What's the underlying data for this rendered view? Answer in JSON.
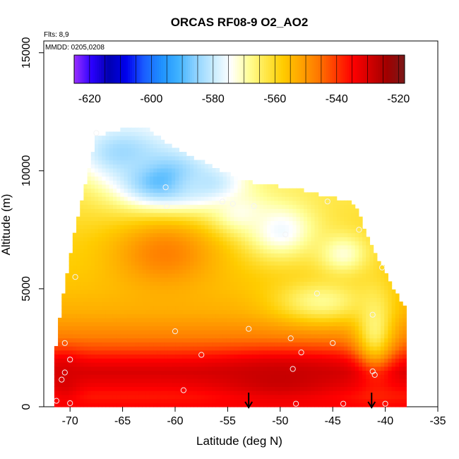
{
  "chart_data": {
    "type": "heatmap",
    "title": "ORCAS RF08-9 O2_AO2",
    "subtitle_flights": "Flts: 8,9",
    "subtitle_dates": "MMDD: 0205,0208",
    "xlabel": "Latitude (deg N)",
    "ylabel": "Altitude (m)",
    "xlim": [
      -72.5,
      -35
    ],
    "ylim": [
      0,
      15500
    ],
    "x_ticks": [
      -70,
      -65,
      -60,
      -55,
      -50,
      -45,
      -40,
      -35
    ],
    "x_tick_labels": [
      "-70",
      "-65",
      "-60",
      "-55",
      "-50",
      "-45",
      "-40",
      "-35"
    ],
    "y_ticks": [
      0,
      5000,
      10000,
      15000
    ],
    "y_tick_labels": [
      "0",
      "5000",
      "10000",
      "15000"
    ],
    "colorbar": {
      "range": [
        -625,
        -518
      ],
      "ticks": [
        -620,
        -600,
        -580,
        -560,
        -540,
        -520
      ],
      "tick_labels": [
        "-620",
        "-600",
        "-580",
        "-560",
        "-540",
        "-520"
      ],
      "colors": [
        "#9b30ff",
        "#2a00ff",
        "#0000b0",
        "#0000ee",
        "#1a5cff",
        "#1e90ff",
        "#3fb2ff",
        "#8fd3ff",
        "#c8ecff",
        "#ffffff",
        "#ffff9a",
        "#ffe84a",
        "#ffcc00",
        "#ffa500",
        "#ff7a00",
        "#ff3c00",
        "#ff0000",
        "#d20000",
        "#a00000",
        "#7a1a1a"
      ]
    },
    "field": {
      "x_range": [
        -71.5,
        -38
      ],
      "y_range": [
        0,
        12000
      ],
      "outline_latitudes": [
        -71.5,
        -71.2,
        -70.8,
        -70.3,
        -69.5,
        -68.5,
        -67.5,
        -66.0,
        -64.5,
        -63.0,
        -61.5,
        -60.0,
        -58.5,
        -57.0,
        -55.5,
        -54.0,
        -52.5,
        -51.0,
        -49.5,
        -48.0,
        -46.5,
        -45.0,
        -43.5,
        -42.5,
        -42.0,
        -41.5,
        -40.8,
        -40.0,
        -39.2,
        -38.6,
        -38.2
      ],
      "outline_top_altitudes": [
        2000,
        3000,
        4500,
        5600,
        7500,
        9500,
        11400,
        11700,
        11800,
        11900,
        11400,
        11000,
        10600,
        10300,
        10000,
        9700,
        9500,
        9400,
        9300,
        9200,
        9000,
        8900,
        8700,
        8300,
        7600,
        7000,
        6300,
        5800,
        5000,
        4600,
        4300
      ],
      "background_profile": {
        "altitudes": [
          0,
          500,
          1000,
          1500,
          2000,
          2500,
          3000,
          3500,
          4000,
          5000,
          6000,
          7000,
          8000,
          9000,
          10000,
          11000,
          12000
        ],
        "values": [
          -535,
          -537,
          -533,
          -530,
          -535,
          -542,
          -547,
          -550,
          -553,
          -556,
          -558,
          -559,
          -561,
          -563,
          -566,
          -570,
          -573
        ]
      },
      "anomalies": [
        {
          "lat": -61,
          "alt": 9600,
          "value": -593,
          "lat_width": 4.5,
          "alt_width": 1300
        },
        {
          "lat": -65,
          "alt": 10800,
          "value": -584,
          "lat_width": 4,
          "alt_width": 1100
        },
        {
          "lat": -57,
          "alt": 9400,
          "value": -582,
          "lat_width": 3.5,
          "alt_width": 900
        },
        {
          "lat": -50,
          "alt": 7500,
          "value": -576,
          "lat_width": 3.5,
          "alt_width": 1200
        },
        {
          "lat": -54,
          "alt": 8200,
          "value": -574,
          "lat_width": 3,
          "alt_width": 900
        },
        {
          "lat": -44,
          "alt": 6500,
          "value": -572,
          "lat_width": 2.5,
          "alt_width": 900
        },
        {
          "lat": -46,
          "alt": 4500,
          "value": -568,
          "lat_width": 4.5,
          "alt_width": 900
        },
        {
          "lat": -41,
          "alt": 3500,
          "value": -566,
          "lat_width": 1.8,
          "alt_width": 1800
        },
        {
          "lat": -61,
          "alt": 6500,
          "value": -547,
          "lat_width": 5,
          "alt_width": 1500
        },
        {
          "lat": -50,
          "alt": 1200,
          "value": -528,
          "lat_width": 6,
          "alt_width": 900
        },
        {
          "lat": -70.5,
          "alt": 1200,
          "value": -530,
          "lat_width": 1.5,
          "alt_width": 900
        }
      ]
    },
    "observation_points": [
      [
        -67.5,
        11600
      ],
      [
        -69.5,
        5500
      ],
      [
        -70.5,
        2700
      ],
      [
        -70.0,
        2000
      ],
      [
        -70.5,
        1450
      ],
      [
        -70.8,
        1150
      ],
      [
        -71.3,
        250
      ],
      [
        -70.0,
        150
      ],
      [
        -60.9,
        9300
      ],
      [
        -60.8,
        8500
      ],
      [
        -55.5,
        8700
      ],
      [
        -54.5,
        8600
      ],
      [
        -52.5,
        8500
      ],
      [
        -49.5,
        7300
      ],
      [
        -46.5,
        4800
      ],
      [
        -45.5,
        8700
      ],
      [
        -42.5,
        7500
      ],
      [
        -40.3,
        5900
      ],
      [
        -41.2,
        3900
      ],
      [
        -41.2,
        1500
      ],
      [
        -40.0,
        130
      ],
      [
        -60.0,
        3200
      ],
      [
        -57.5,
        2200
      ],
      [
        -53.0,
        3300
      ],
      [
        -49.0,
        2900
      ],
      [
        -48.0,
        2300
      ],
      [
        -45.0,
        2700
      ],
      [
        -48.8,
        1600
      ],
      [
        -59.2,
        700
      ],
      [
        -48.5,
        130
      ],
      [
        -44.0,
        130
      ],
      [
        -41.0,
        1350
      ]
    ],
    "arrows_latitudes": [
      -53.0,
      -41.3
    ],
    "grid": false,
    "legend": "colorbar top, inside plot"
  }
}
